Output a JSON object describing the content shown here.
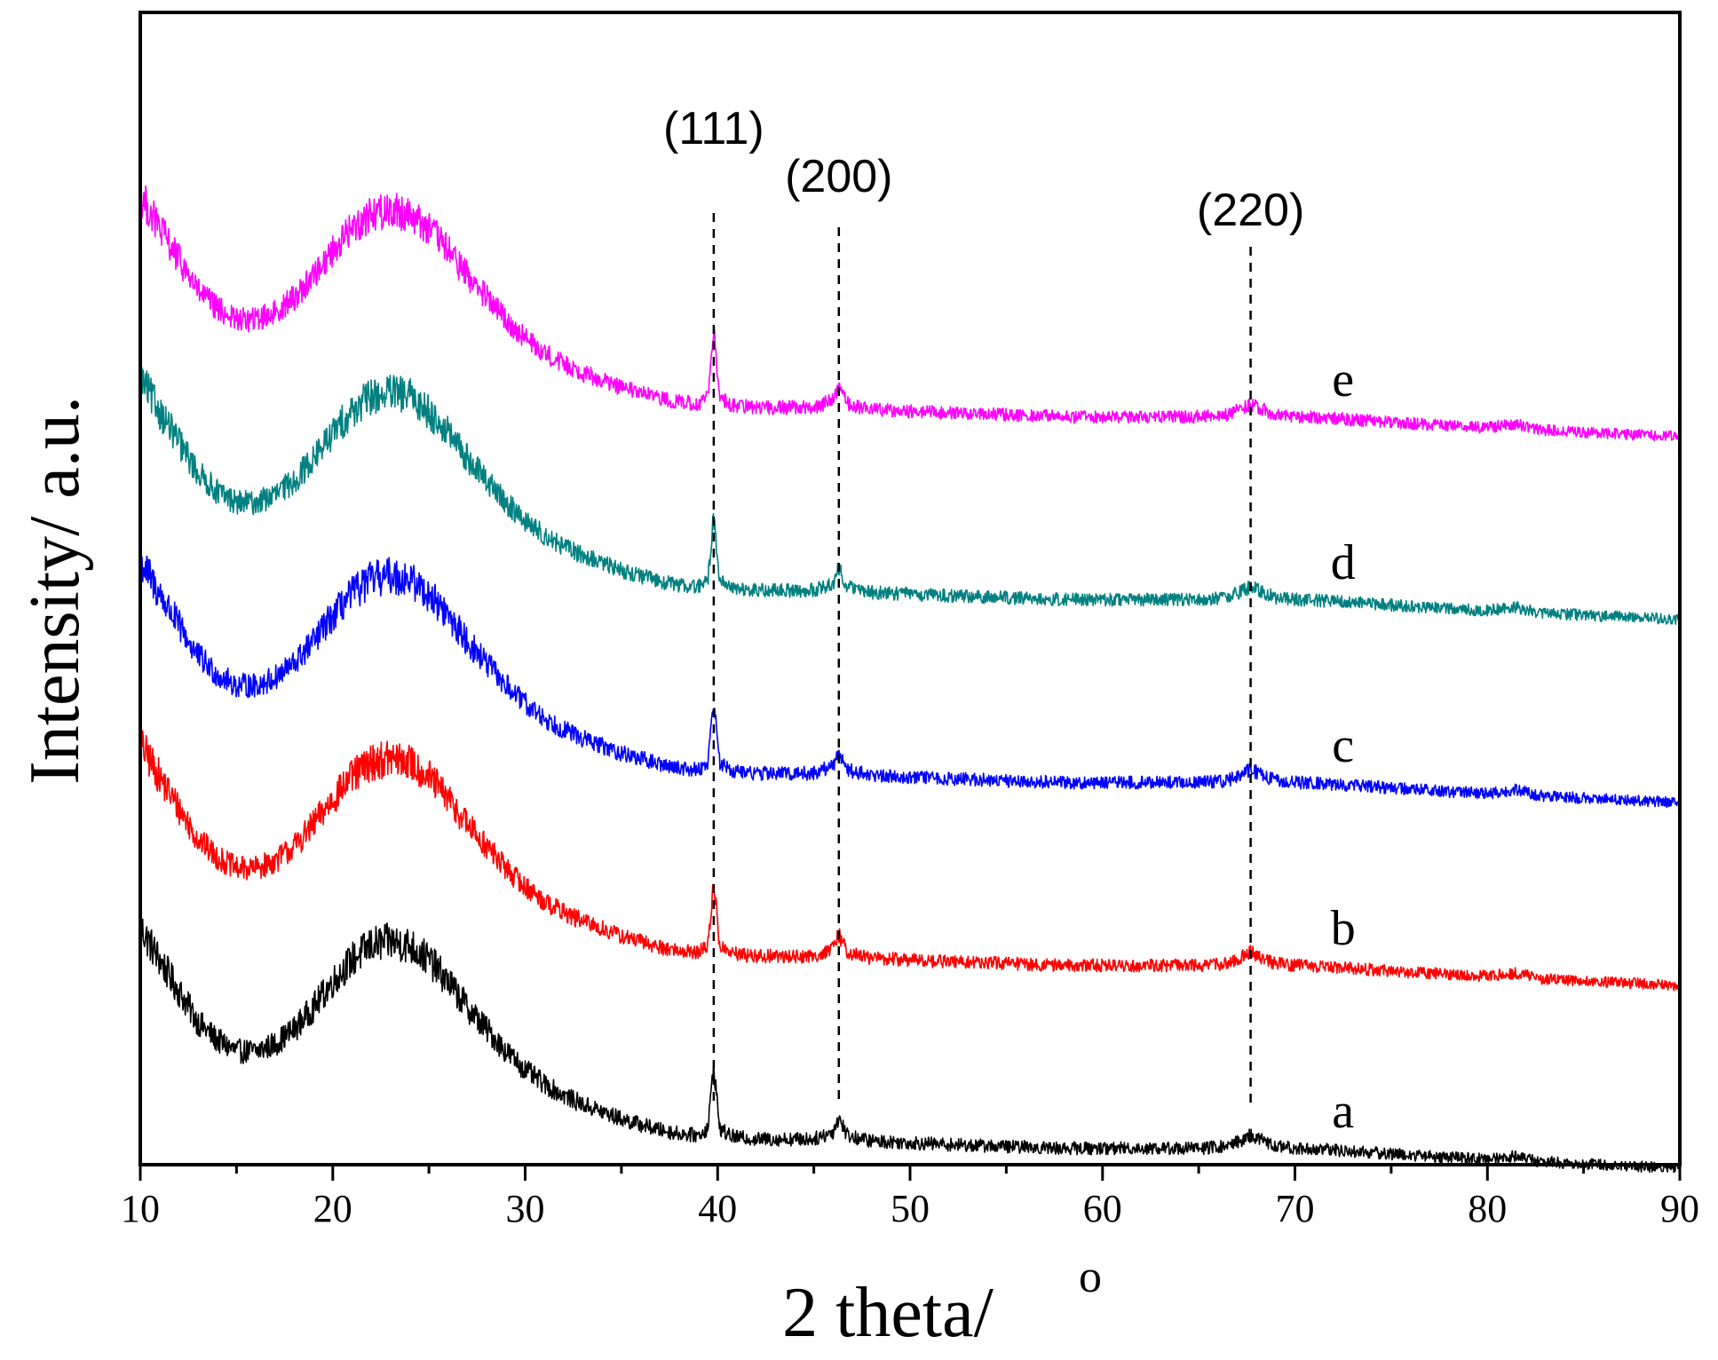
{
  "chart_data": {
    "type": "line",
    "title": "",
    "xlabel": "2 theta/",
    "xlabel_superscript": "o",
    "ylabel": "Intensity/ a.u.",
    "xlim": [
      10,
      90
    ],
    "ylim": [
      0,
      6.3
    ],
    "x_ticks": [
      10,
      20,
      30,
      40,
      50,
      60,
      70,
      80,
      90
    ],
    "x_tick_labels": [
      "10",
      "20",
      "30",
      "40",
      "50",
      "60",
      "70",
      "80",
      "90"
    ],
    "y_tick_labels": [],
    "grid": false,
    "peaks": [
      {
        "label": "(111)",
        "x": 39.8
      },
      {
        "label": "(200)",
        "x": 46.3
      },
      {
        "label": "(220)",
        "x": 67.7
      }
    ],
    "profile": {
      "x": [
        10,
        11,
        12,
        13,
        14,
        15,
        16,
        17,
        18,
        19,
        20,
        21,
        22,
        23,
        24,
        25,
        26,
        27,
        28,
        29,
        30,
        31,
        32,
        33,
        34,
        35,
        36,
        37,
        38,
        39,
        39.5,
        39.8,
        40.1,
        40.6,
        41,
        42,
        43,
        44,
        45,
        46,
        46.3,
        46.7,
        47,
        48,
        50,
        52,
        55,
        58,
        60,
        62,
        65,
        66.5,
        67.7,
        69,
        70,
        72,
        75,
        78,
        80,
        81.5,
        82.5,
        84,
        86,
        88,
        90
      ],
      "y": [
        1.3,
        1.12,
        0.95,
        0.78,
        0.68,
        0.62,
        0.62,
        0.66,
        0.74,
        0.86,
        1.0,
        1.12,
        1.2,
        1.22,
        1.2,
        1.12,
        1.0,
        0.86,
        0.74,
        0.62,
        0.52,
        0.44,
        0.38,
        0.33,
        0.29,
        0.25,
        0.22,
        0.19,
        0.17,
        0.16,
        0.2,
        0.55,
        0.2,
        0.16,
        0.15,
        0.14,
        0.14,
        0.14,
        0.14,
        0.18,
        0.26,
        0.17,
        0.15,
        0.13,
        0.12,
        0.11,
        0.1,
        0.09,
        0.09,
        0.09,
        0.09,
        0.1,
        0.16,
        0.1,
        0.09,
        0.08,
        0.06,
        0.04,
        0.03,
        0.05,
        0.02,
        0.01,
        0.0,
        -0.01,
        -0.02
      ]
    },
    "series": [
      {
        "name": "a",
        "color": "#000000",
        "offset": 0.0
      },
      {
        "name": "b",
        "color": "#ff0000",
        "offset": 1.0
      },
      {
        "name": "c",
        "color": "#0000ff",
        "offset": 2.0
      },
      {
        "name": "d",
        "color": "#008080",
        "offset": 3.0
      },
      {
        "name": "e",
        "color": "#ff00ff",
        "offset": 4.0
      }
    ]
  }
}
